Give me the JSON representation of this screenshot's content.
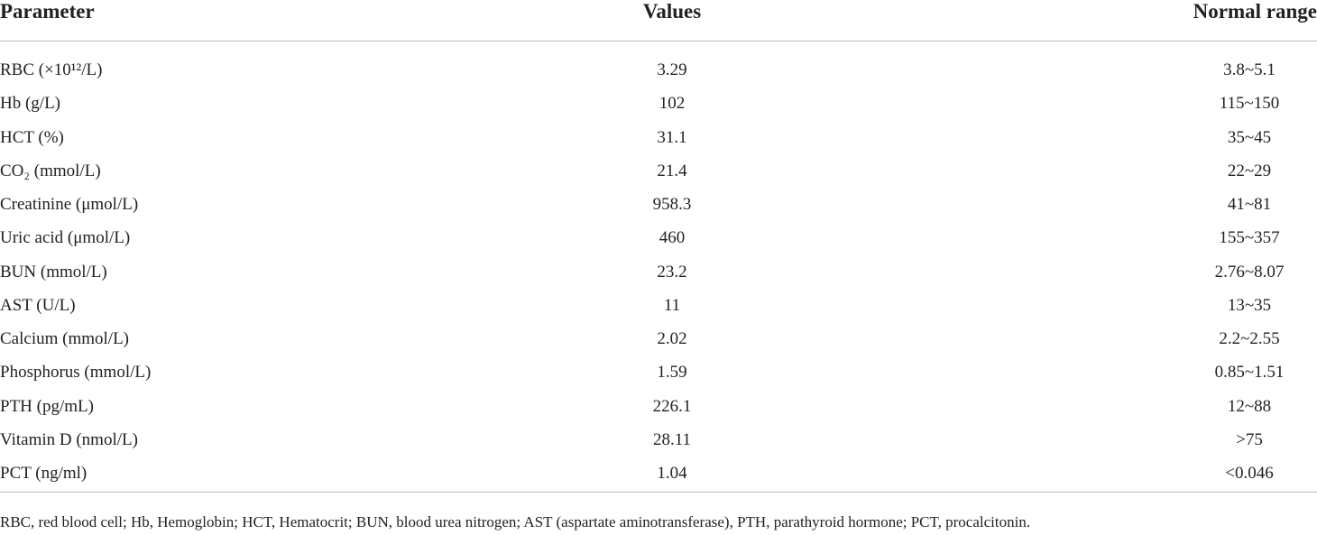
{
  "table": {
    "header": [
      "Parameter",
      "Values",
      "Normal range"
    ],
    "rows": [
      [
        "RBC (×10¹²/L)",
        "3.29",
        "3.8~5.1"
      ],
      [
        "Hb (g/L)",
        "102",
        "115~150"
      ],
      [
        "HCT (%)",
        "31.1",
        "35~45"
      ],
      [
        "CO₂ (mmol/L)",
        "21.4",
        "22~29"
      ],
      [
        "Creatinine (μmol/L)",
        "958.3",
        "41~81"
      ],
      [
        "Uric acid (μmol/L)",
        "460",
        "155~357"
      ],
      [
        "BUN (mmol/L)",
        "23.2",
        "2.76~8.07"
      ],
      [
        "AST (U/L)",
        "11",
        "13~35"
      ],
      [
        "Calcium (mmol/L)",
        "2.02",
        "2.2~2.55"
      ],
      [
        "Phosphorus (mmol/L)",
        "1.59",
        "0.85~1.51"
      ],
      [
        "PTH (pg/mL)",
        "226.1",
        "12~88"
      ],
      [
        "Vitamin D (nmol/L)",
        "28.11",
        ">75"
      ],
      [
        "PCT (ng/ml)",
        "1.04",
        "<0.046"
      ]
    ]
  },
  "footnote": "RBC, red blood cell; Hb, Hemoglobin; HCT, Hematocrit; BUN, blood urea nitrogen; AST (aspartate aminotransferase), PTH, parathyroid hormone; PCT, procalcitonin."
}
